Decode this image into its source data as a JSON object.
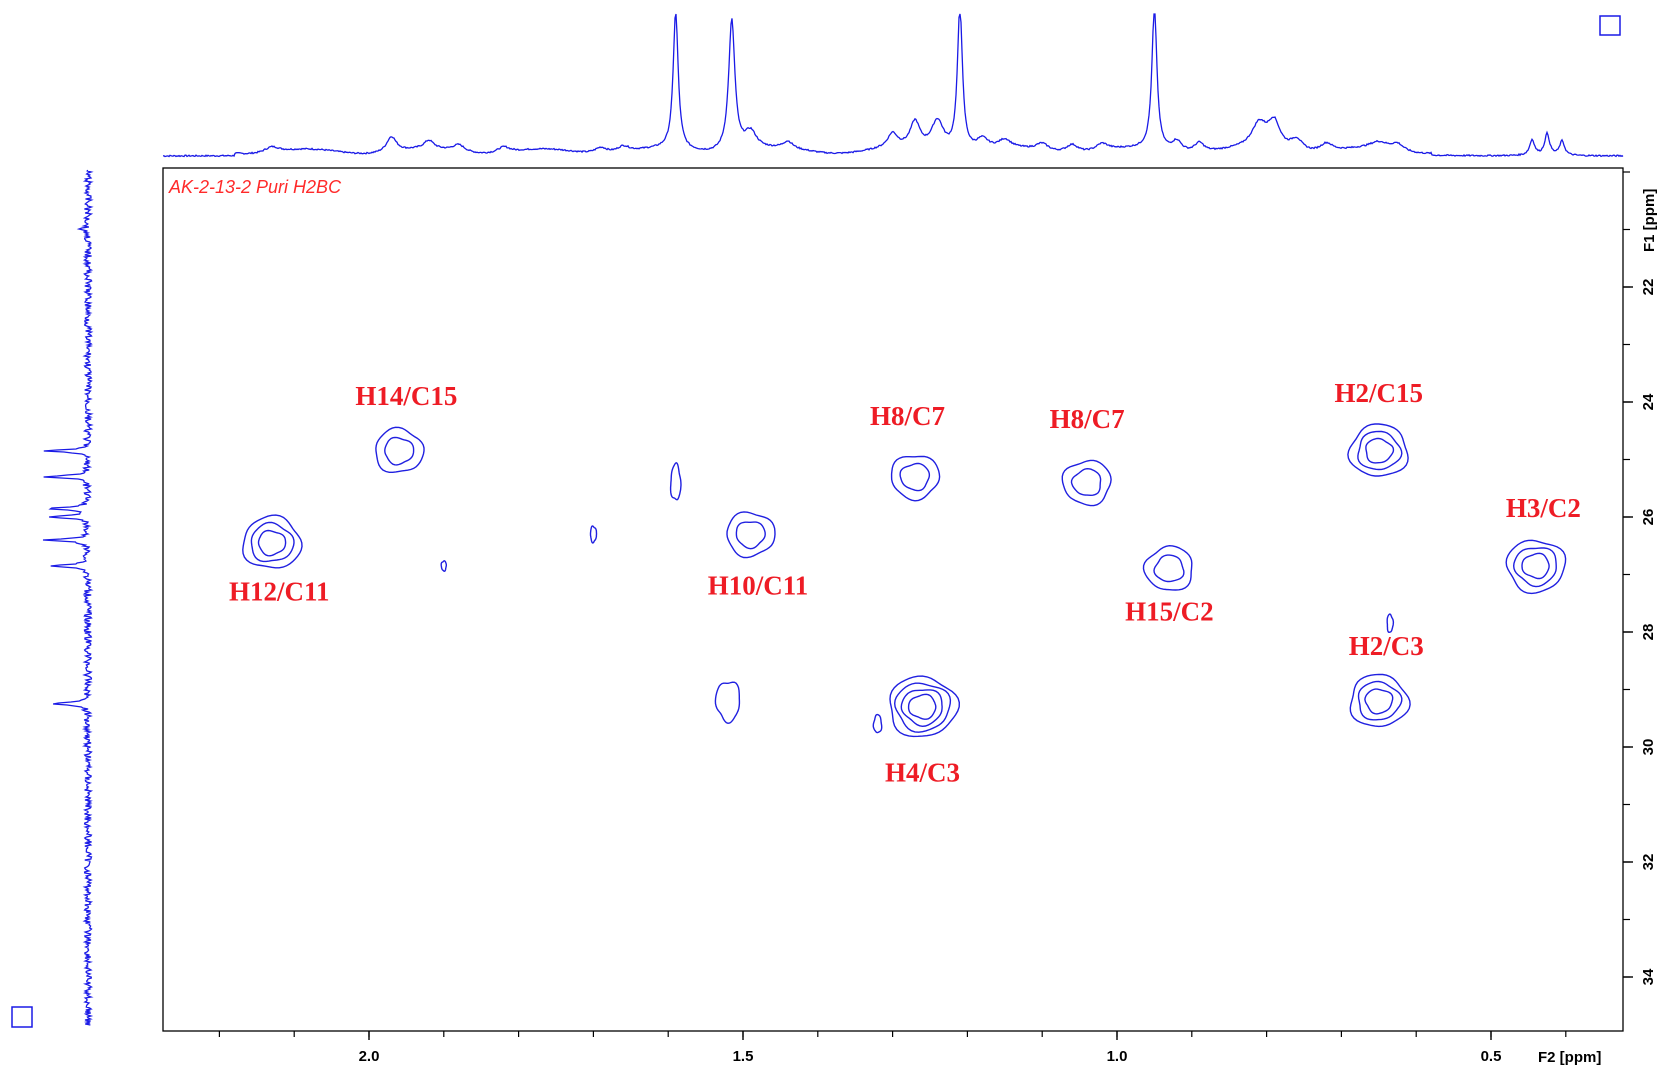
{
  "experiment": {
    "title": "AK-2-13-2 Puri H2BC",
    "accent_color": "#ee1c25",
    "contour_color": "#2020e0"
  },
  "chart_data": {
    "type": "2d-nmr-contour",
    "title": "AK-2-13-2 Puri H2BC",
    "x_axis": {
      "label": "F2 [ppm]",
      "reversed": true,
      "range": [
        2.2,
        0.3
      ],
      "ticks": [
        {
          "value": 2.0,
          "label": "2.0"
        },
        {
          "value": 1.5,
          "label": "1.5"
        },
        {
          "value": 1.0,
          "label": "1.0"
        },
        {
          "value": 0.5,
          "label": "0.5"
        }
      ]
    },
    "y_axis": {
      "label": "F1 [ppm]",
      "range": [
        20,
        35
      ],
      "ticks": [
        {
          "value": 22,
          "label": "22"
        },
        {
          "value": 24,
          "label": "24"
        },
        {
          "value": 26,
          "label": "26"
        },
        {
          "value": 28,
          "label": "28"
        },
        {
          "value": 30,
          "label": "30"
        },
        {
          "value": 32,
          "label": "32"
        },
        {
          "value": 34,
          "label": "34"
        }
      ]
    },
    "cross_peaks": [
      {
        "label": "H12/C11",
        "f2": 2.13,
        "f1": 26.45,
        "levels": 3,
        "lx": 2.12,
        "ly": 27.45
      },
      {
        "label": "H14/C15",
        "f2": 1.96,
        "f1": 24.85,
        "levels": 2,
        "lx": 1.95,
        "ly": 24.05
      },
      {
        "label": "H10/C11",
        "f2": 1.49,
        "f1": 26.3,
        "levels": 2,
        "lx": 1.48,
        "ly": 27.35
      },
      {
        "label": "H8/C7",
        "f2": 1.27,
        "f1": 25.3,
        "levels": 2,
        "lx": 1.28,
        "ly": 24.4
      },
      {
        "label": "H8/C7",
        "f2": 1.04,
        "f1": 25.4,
        "levels": 2,
        "lx": 1.04,
        "ly": 24.45
      },
      {
        "label": "H15/C2",
        "f2": 0.93,
        "f1": 26.9,
        "levels": 2,
        "lx": 0.93,
        "ly": 27.8
      },
      {
        "label": "H2/C15",
        "f2": 0.65,
        "f1": 24.85,
        "levels": 3,
        "lx": 0.65,
        "ly": 24.0
      },
      {
        "label": "H2/C3",
        "f2": 0.65,
        "f1": 29.2,
        "levels": 3,
        "lx": 0.64,
        "ly": 28.4
      },
      {
        "label": "H4/C3",
        "f2": 1.26,
        "f1": 29.3,
        "levels": 4,
        "lx": 1.26,
        "ly": 30.6
      },
      {
        "label": "H3/C2",
        "f2": 0.44,
        "f1": 26.85,
        "levels": 3,
        "lx": 0.43,
        "ly": 26.0
      }
    ],
    "f2_projection_peaks": [
      {
        "ppm": 2.13,
        "h": 0.05,
        "w": 0.012
      },
      {
        "ppm": 1.97,
        "h": 0.13,
        "w": 0.008
      },
      {
        "ppm": 1.92,
        "h": 0.07,
        "w": 0.008
      },
      {
        "ppm": 1.88,
        "h": 0.06,
        "w": 0.01
      },
      {
        "ppm": 1.82,
        "h": 0.05,
        "w": 0.01
      },
      {
        "ppm": 1.69,
        "h": 0.05,
        "w": 0.01
      },
      {
        "ppm": 1.66,
        "h": 0.05,
        "w": 0.01
      },
      {
        "ppm": 1.59,
        "h": 1.15,
        "w": 0.004
      },
      {
        "ppm": 1.515,
        "h": 1.1,
        "w": 0.005
      },
      {
        "ppm": 1.49,
        "h": 0.15,
        "w": 0.01
      },
      {
        "ppm": 1.44,
        "h": 0.06,
        "w": 0.008
      },
      {
        "ppm": 1.3,
        "h": 0.12,
        "w": 0.008
      },
      {
        "ppm": 1.27,
        "h": 0.22,
        "w": 0.008
      },
      {
        "ppm": 1.24,
        "h": 0.25,
        "w": 0.01
      },
      {
        "ppm": 1.21,
        "h": 1.2,
        "w": 0.004
      },
      {
        "ppm": 1.18,
        "h": 0.09,
        "w": 0.01
      },
      {
        "ppm": 1.15,
        "h": 0.07,
        "w": 0.01
      },
      {
        "ppm": 1.1,
        "h": 0.06,
        "w": 0.01
      },
      {
        "ppm": 1.06,
        "h": 0.07,
        "w": 0.01
      },
      {
        "ppm": 1.02,
        "h": 0.06,
        "w": 0.01
      },
      {
        "ppm": 0.95,
        "h": 1.2,
        "w": 0.004
      },
      {
        "ppm": 0.92,
        "h": 0.09,
        "w": 0.008
      },
      {
        "ppm": 0.89,
        "h": 0.08,
        "w": 0.008
      },
      {
        "ppm": 0.81,
        "h": 0.2,
        "w": 0.012
      },
      {
        "ppm": 0.79,
        "h": 0.22,
        "w": 0.01
      },
      {
        "ppm": 0.76,
        "h": 0.1,
        "w": 0.01
      },
      {
        "ppm": 0.72,
        "h": 0.07,
        "w": 0.01
      },
      {
        "ppm": 0.65,
        "h": 0.06,
        "w": 0.015
      },
      {
        "ppm": 0.625,
        "h": 0.06,
        "w": 0.01
      },
      {
        "ppm": 0.445,
        "h": 0.13,
        "w": 0.004
      },
      {
        "ppm": 0.425,
        "h": 0.18,
        "w": 0.004
      },
      {
        "ppm": 0.405,
        "h": 0.12,
        "w": 0.004
      }
    ],
    "f1_projection_peaks": [
      {
        "ppm": 21.0,
        "h": 0.12
      },
      {
        "ppm": 24.85,
        "h": 0.68
      },
      {
        "ppm": 25.3,
        "h": 0.7
      },
      {
        "ppm": 25.85,
        "h": 0.65
      },
      {
        "ppm": 26.0,
        "h": 0.6
      },
      {
        "ppm": 26.4,
        "h": 0.7
      },
      {
        "ppm": 26.85,
        "h": 0.62
      },
      {
        "ppm": 29.25,
        "h": 0.62
      }
    ]
  }
}
